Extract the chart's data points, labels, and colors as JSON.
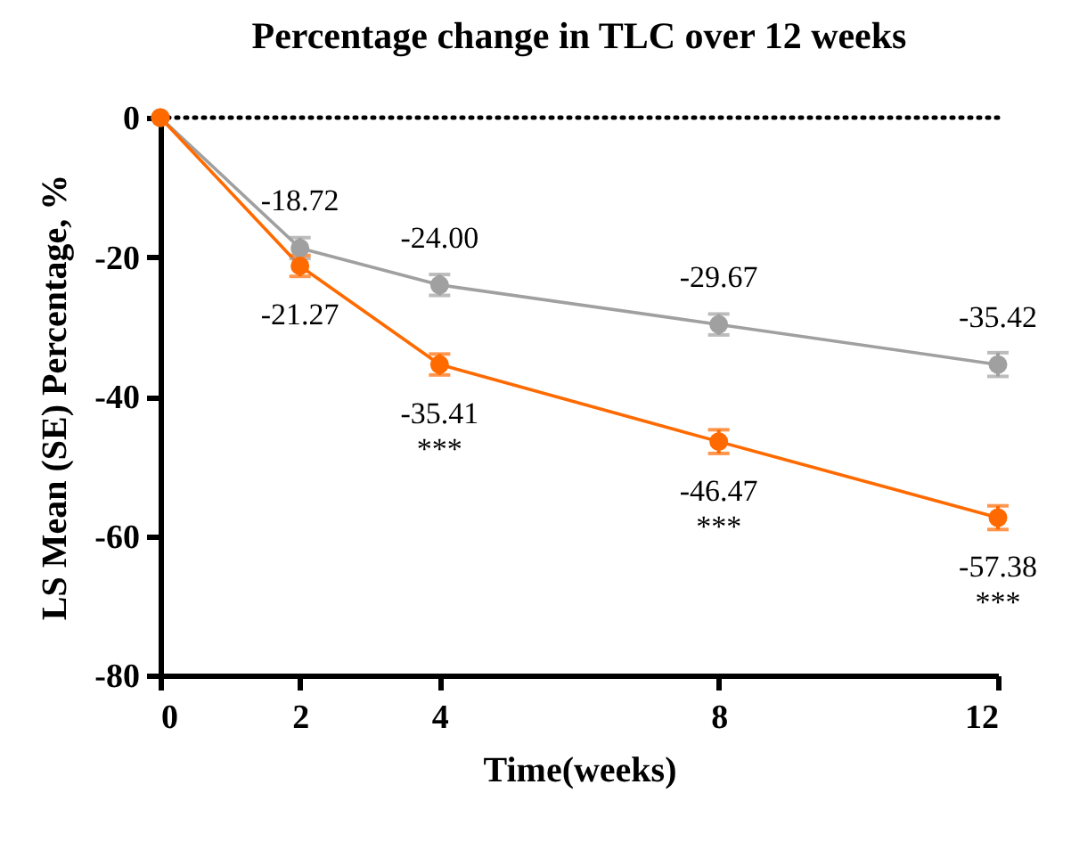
{
  "chart_data": {
    "type": "line",
    "title": "Percentage change in TLC over 12 weeks",
    "xlabel": "Time(weeks)",
    "ylabel": "LS Mean (SE) Percentage, %",
    "x": [
      0,
      2,
      4,
      8,
      12
    ],
    "series": [
      {
        "color": "#a0a0a0",
        "values": [
          0,
          -18.72,
          -24.0,
          -29.67,
          -35.42
        ],
        "errors": [
          null,
          1.5,
          1.5,
          1.5,
          1.7
        ],
        "value_labels": [
          null,
          "-18.72",
          "-24.00",
          "-29.67",
          "-35.42"
        ]
      },
      {
        "color": "#ff6a00",
        "values": [
          0,
          -21.27,
          -35.41,
          -46.47,
          -57.38
        ],
        "errors": [
          null,
          1.5,
          1.5,
          1.7,
          1.7
        ],
        "value_labels": [
          null,
          "-21.27",
          "-35.41",
          "-46.47",
          "-57.38"
        ]
      }
    ],
    "annotations": [
      {
        "text": "***",
        "x": 4,
        "y": -35.41
      },
      {
        "text": "***",
        "x": 8,
        "y": -46.47
      },
      {
        "text": "***",
        "x": 12,
        "y": -57.38
      }
    ],
    "ref_lines": [
      {
        "axis": "y",
        "value": 0,
        "line_style": "dotted",
        "color": "#000000"
      }
    ],
    "xlim": [
      0,
      12
    ],
    "xticks": [
      0,
      2,
      4,
      8,
      12
    ],
    "ylim": [
      -80,
      0
    ],
    "yticks": [
      0,
      -20,
      -40,
      -60,
      -80
    ],
    "grid": false,
    "legend": false,
    "marker": "circle",
    "line_style": "solid"
  }
}
